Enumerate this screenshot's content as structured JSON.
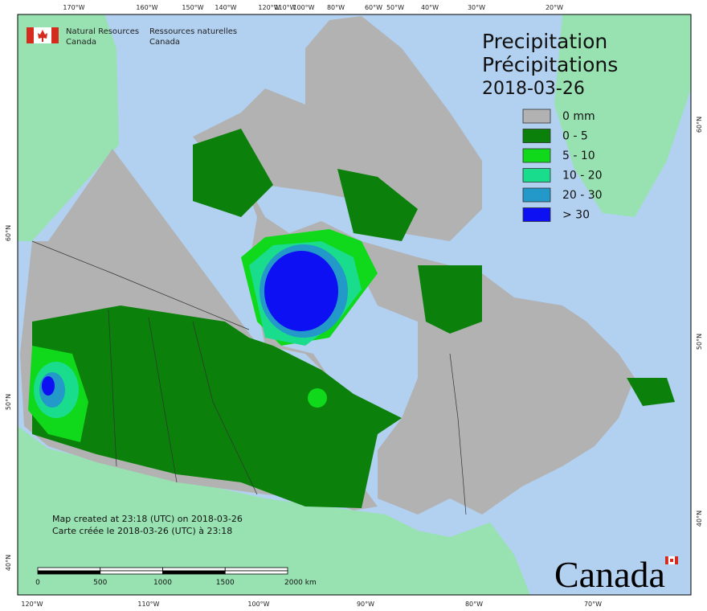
{
  "agency": {
    "name_en": "Natural Resources",
    "country_en": "Canada",
    "name_fr": "Ressources naturelles",
    "country_fr": "Canada"
  },
  "legend": {
    "title": "Precipitation",
    "title_fr": "Précipitations",
    "date": "2018-03-26",
    "items": [
      {
        "label": "0 mm",
        "color": "#b2b2b2"
      },
      {
        "label": "0 - 5",
        "color": "#0b800b"
      },
      {
        "label": "5 - 10",
        "color": "#10d81a"
      },
      {
        "label": "10 - 20",
        "color": "#19dd8c"
      },
      {
        "label": "20 - 30",
        "color": "#2299c8"
      },
      {
        "label": "> 30",
        "color": "#0c10f2"
      }
    ]
  },
  "footer": {
    "created_en": "Map created at 23:18 (UTC) on 2018-03-26",
    "created_fr": "Carte créée le 2018-03-26 (UTC) à 23:18"
  },
  "scale_bar": {
    "labels": [
      "0",
      "500",
      "1000",
      "1500",
      "2000 km"
    ]
  },
  "graticule": {
    "top": [
      "170°W",
      "160°W",
      "150°W",
      "140°W",
      "120°W",
      "110°W",
      "100°W",
      "80°W",
      "60°W",
      "50°W",
      "40°W",
      "30°W",
      "20°W"
    ],
    "bottom": [
      "120°W",
      "110°W",
      "100°W",
      "90°W",
      "80°W",
      "70°W"
    ],
    "left": [
      "60°N",
      "50°N",
      "40°N"
    ],
    "right": [
      "60°N",
      "50°N",
      "40°N"
    ]
  },
  "wordmark": "Canada"
}
